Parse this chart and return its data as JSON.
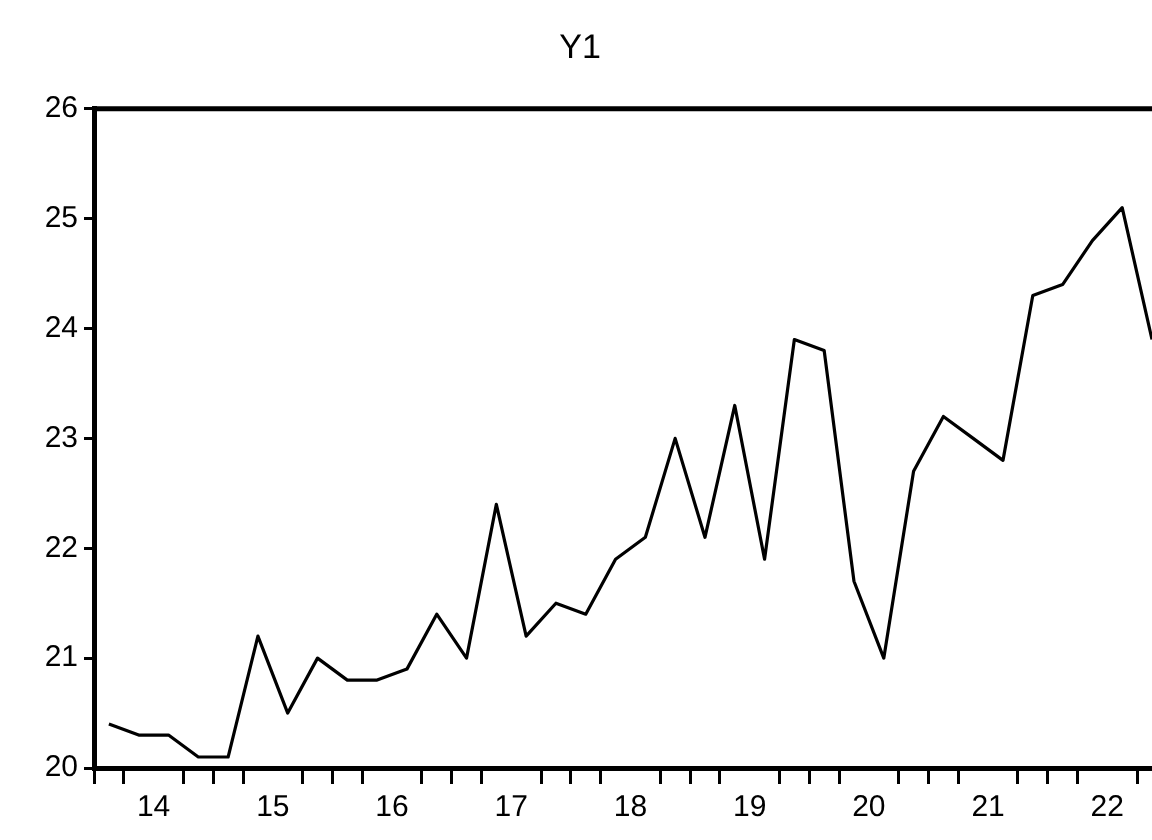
{
  "chart_data": {
    "type": "line",
    "title": "Y1",
    "x": [
      14.125,
      14.375,
      14.625,
      14.875,
      15.125,
      15.375,
      15.625,
      15.875,
      16.125,
      16.375,
      16.625,
      16.875,
      17.125,
      17.375,
      17.625,
      17.875,
      18.125,
      18.375,
      18.625,
      18.875,
      19.125,
      19.375,
      19.625,
      19.875,
      20.125,
      20.375,
      20.625,
      20.875,
      21.125,
      21.375,
      21.625,
      21.875,
      22.125,
      22.375,
      22.625,
      22.875
    ],
    "series": [
      {
        "color": "#000000",
        "values": [
          20.4,
          20.3,
          20.3,
          20.1,
          20.1,
          21.2,
          20.5,
          21.0,
          20.8,
          20.8,
          20.9,
          21.4,
          21.0,
          22.4,
          21.2,
          21.5,
          21.4,
          21.9,
          22.1,
          23.0,
          22.1,
          23.3,
          21.9,
          23.9,
          23.8,
          21.7,
          21.0,
          22.7,
          23.2,
          23.0,
          22.8,
          24.3,
          24.4,
          24.8,
          25.1,
          23.9
        ]
      }
    ],
    "xlim": [
      14,
      22.875
    ],
    "xticks": [
      {
        "value": 14,
        "label": null
      },
      {
        "value": 14.25,
        "label": null
      },
      {
        "value": 14.5,
        "label": "14"
      },
      {
        "value": 14.75,
        "label": null
      },
      {
        "value": 15,
        "label": null
      },
      {
        "value": 15.25,
        "label": null
      },
      {
        "value": 15.5,
        "label": "15"
      },
      {
        "value": 15.75,
        "label": null
      },
      {
        "value": 16,
        "label": null
      },
      {
        "value": 16.25,
        "label": null
      },
      {
        "value": 16.5,
        "label": "16"
      },
      {
        "value": 16.75,
        "label": null
      },
      {
        "value": 17,
        "label": null
      },
      {
        "value": 17.25,
        "label": null
      },
      {
        "value": 17.5,
        "label": "17"
      },
      {
        "value": 17.75,
        "label": null
      },
      {
        "value": 18,
        "label": null
      },
      {
        "value": 18.25,
        "label": null
      },
      {
        "value": 18.5,
        "label": "18"
      },
      {
        "value": 18.75,
        "label": null
      },
      {
        "value": 19,
        "label": null
      },
      {
        "value": 19.25,
        "label": null
      },
      {
        "value": 19.5,
        "label": "19"
      },
      {
        "value": 19.75,
        "label": null
      },
      {
        "value": 20,
        "label": null
      },
      {
        "value": 20.25,
        "label": null
      },
      {
        "value": 20.5,
        "label": "20"
      },
      {
        "value": 20.75,
        "label": null
      },
      {
        "value": 21,
        "label": null
      },
      {
        "value": 21.25,
        "label": null
      },
      {
        "value": 21.5,
        "label": "21"
      },
      {
        "value": 21.75,
        "label": null
      },
      {
        "value": 22,
        "label": null
      },
      {
        "value": 22.25,
        "label": null
      },
      {
        "value": 22.5,
        "label": "22"
      },
      {
        "value": 22.75,
        "label": null
      }
    ],
    "ylim": [
      20,
      26
    ],
    "yticks": [
      20,
      21,
      22,
      23,
      24,
      25,
      26
    ],
    "grid": false,
    "legend": false,
    "marker": "none",
    "line_style": "solid"
  }
}
